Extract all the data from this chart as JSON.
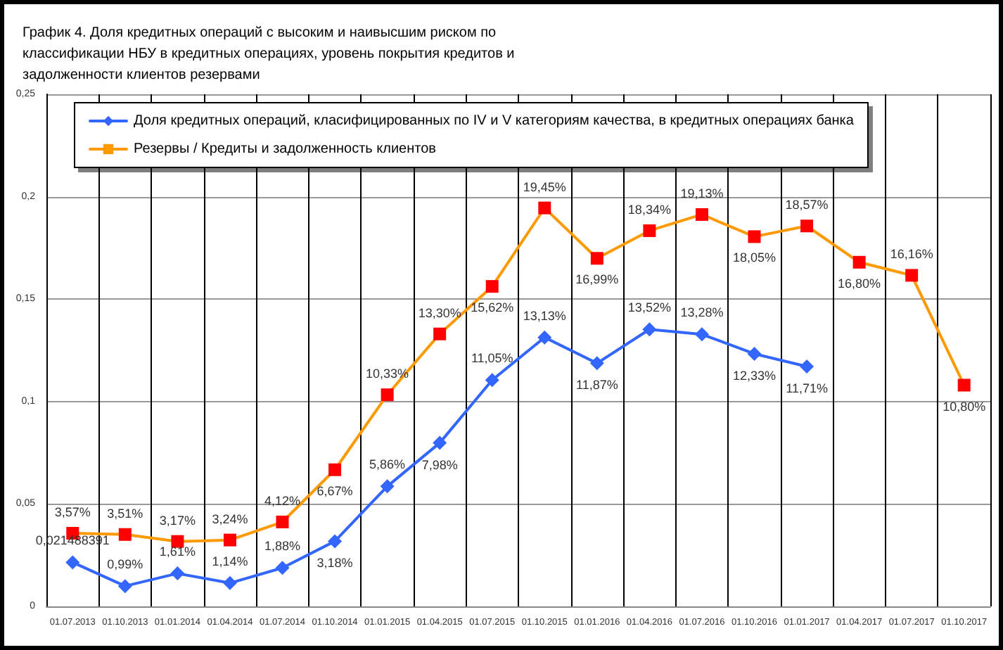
{
  "chart_data": {
    "type": "line",
    "title": "График 4. Доля кредитных операций с высоким и наивысшим риском по классификации НБУ в кредитных операциях, уровень покрытия кредитов и задолженности клиентов резервами",
    "categories": [
      "01.07.2013",
      "01.10.2013",
      "01.01.2014",
      "01.04.2014",
      "01.07.2014",
      "01.10.2014",
      "01.01.2015",
      "01.04.2015",
      "01.07.2015",
      "01.10.2015",
      "01.01.2016",
      "01.04.2016",
      "01.07.2016",
      "01.10.2016",
      "01.01.2017",
      "01.04.2017",
      "01.07.2017",
      "01.10.2017"
    ],
    "series": [
      {
        "name": "Доля кредитных операций, класифицированных по IV и V категориям качества, в кредитных операциях банка",
        "color": "#3366ff",
        "marker": "diamond",
        "values": [
          0.021488391,
          0.0099,
          0.0161,
          0.0114,
          0.0188,
          0.0318,
          0.0586,
          0.0798,
          0.1105,
          0.1313,
          0.1187,
          0.1352,
          0.1328,
          0.1233,
          0.1171,
          null,
          null,
          null
        ],
        "value_labels": [
          "0,021488391",
          "0,99%",
          "1,61%",
          "1,14%",
          "1,88%",
          "3,18%",
          "5,86%",
          "7,98%",
          "11,05%",
          "13,13%",
          "11,87%",
          "13,52%",
          "13,28%",
          "12,33%",
          "11,71%",
          null,
          null,
          null
        ]
      },
      {
        "name": "Резервы / Кредиты и задолженность клиентов",
        "color": "#ff9900",
        "colors": [
          "#ff0000",
          "#ff0000",
          "#ff0000",
          "#ff0000",
          "#ff0000",
          "#ff0000",
          "#ff0000",
          "#ff0000",
          "#ff0000",
          "#ff0000",
          "#ff0000",
          "#ff0000",
          "#ff0000",
          "#ff0000",
          "#ff0000",
          "#ff0000",
          "#ff0000",
          "#ff0000"
        ],
        "marker": "square",
        "values": [
          0.0357,
          0.0351,
          0.0317,
          0.0324,
          0.0412,
          0.0667,
          0.1033,
          0.133,
          0.1562,
          0.1945,
          0.1699,
          0.1834,
          0.1913,
          0.1805,
          0.1857,
          0.168,
          0.1616,
          0.108
        ],
        "value_labels": [
          "3,57%",
          "3,51%",
          "3,17%",
          "3,24%",
          "4,12%",
          "6,67%",
          "10,33%",
          "13,30%",
          "15,62%",
          "19,45%",
          "16,99%",
          "18,34%",
          "19,13%",
          "18,05%",
          "18,57%",
          "16,80%",
          "16,16%",
          "10,80%"
        ]
      }
    ],
    "ylim": [
      0,
      0.25
    ],
    "yticks": [
      0,
      {
        "value": 0.05,
        "label": "0,05"
      },
      {
        "value": 0.1,
        "label": "0,1"
      },
      {
        "value": 0.15,
        "label": "0,15"
      },
      {
        "value": 0.2,
        "label": "0,2"
      },
      {
        "value": 0.25,
        "label": "0,25"
      }
    ],
    "grid": true,
    "legend": "top"
  }
}
